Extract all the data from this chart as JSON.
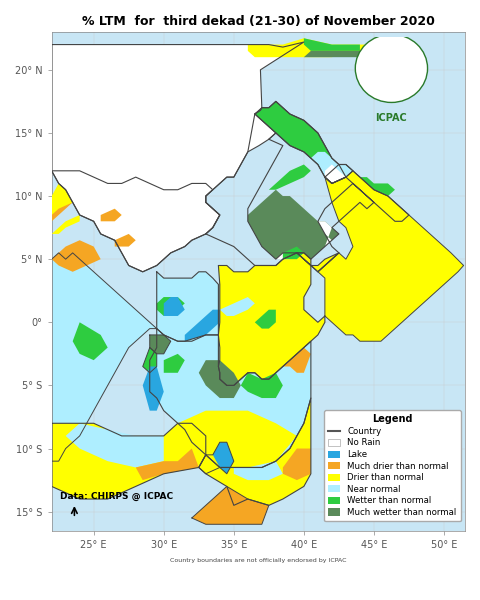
{
  "title": "% LTM  for  third dekad (21-30) of November 2020",
  "title_fontsize": 9,
  "background_color": "#ffffff",
  "xlim": [
    22.0,
    51.5
  ],
  "ylim": [
    -16.5,
    23.0
  ],
  "xticks": [
    25,
    30,
    35,
    40,
    45,
    50
  ],
  "yticks": [
    20,
    15,
    10,
    5,
    0,
    -5,
    -10,
    -15
  ],
  "xlabel_labels": [
    "25° E",
    "30° E",
    "35° E",
    "40° E",
    "45° E",
    "50° E"
  ],
  "ylabel_labels": [
    "20° N",
    "15° N",
    "10° N",
    "5° N",
    "0°",
    "5° S",
    "10° S",
    "15° S"
  ],
  "legend_title": "Legend",
  "legend_items": [
    {
      "label": "Country",
      "color": "#555555",
      "type": "line"
    },
    {
      "label": "No Rain",
      "color": "#ffffff",
      "type": "patch",
      "edgecolor": "#aaaaaa"
    },
    {
      "label": "Lake",
      "color": "#29a6e0",
      "type": "patch"
    },
    {
      "label": "Much drier than normal",
      "color": "#f5a623",
      "type": "patch"
    },
    {
      "label": "Drier than normal",
      "color": "#ffff00",
      "type": "patch"
    },
    {
      "label": "Near normal",
      "color": "#aeeeff",
      "type": "patch"
    },
    {
      "label": "Wetter than normal",
      "color": "#2ecc40",
      "type": "patch"
    },
    {
      "label": "Much wetter than normal",
      "color": "#5a8a5a",
      "type": "patch"
    }
  ],
  "data_source": "Data: CHIRPS @ ICPAC",
  "disclaimer": "Country boundaries are not officially endorsed by ICPAC",
  "colors": {
    "much_drier": "#f5a623",
    "drier": "#ffff00",
    "near_normal": "#aeeeff",
    "wetter": "#2ecc40",
    "much_wetter": "#5a8a5a",
    "lake": "#29a6e0",
    "no_rain": "#ffffff",
    "border": "#444444",
    "ocean": "#c8e6f5",
    "land_white": "#ffffff"
  }
}
